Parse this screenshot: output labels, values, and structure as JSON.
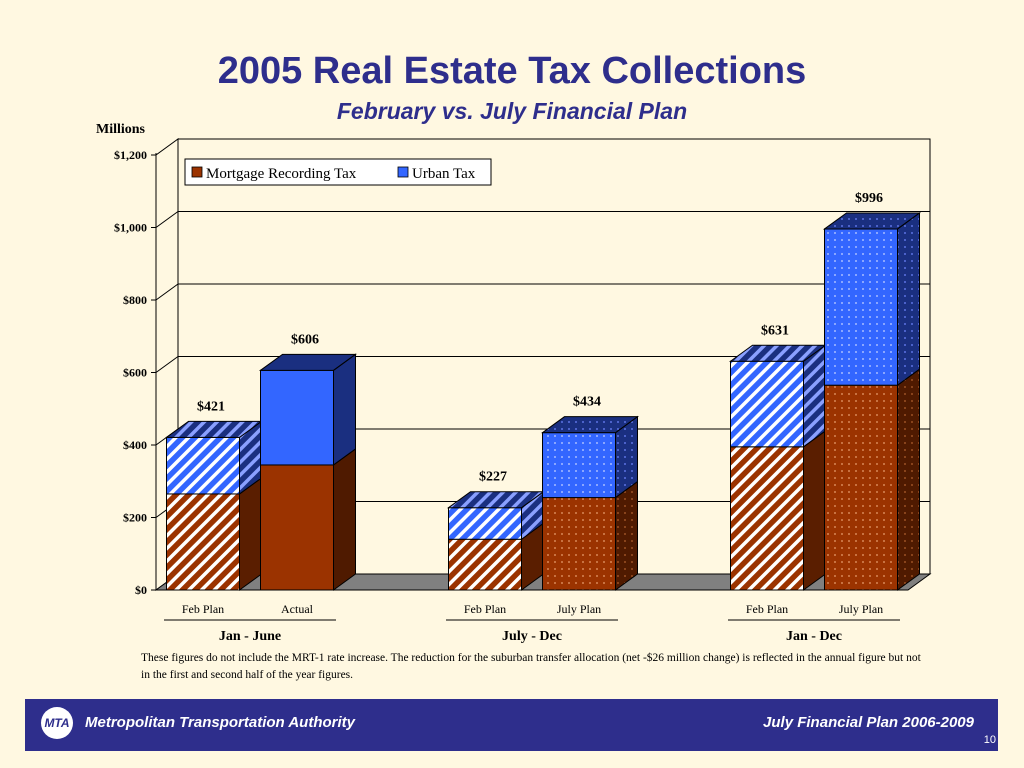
{
  "slide": {
    "title": "2005 Real Estate Tax Collections",
    "subtitle": "February vs. July Financial Plan",
    "units": "Millions",
    "note": "These figures do not include the MRT-1 rate increase.  The reduction for the suburban transfer allocation (net -$26 million change) is reflected in the annual figure but not in the first and second half of the year figures.",
    "footer_org": "Metropolitan Transportation Authority",
    "footer_plan": "July Financial Plan 2006-2009",
    "page_number": "10",
    "logo_text": "MTA"
  },
  "chart_data": {
    "type": "bar",
    "stacked": true,
    "title": "2005 Real Estate Tax Collections",
    "subtitle": "February vs. July Financial Plan",
    "ylabel": "Millions",
    "ylim": [
      0,
      1200
    ],
    "yticks": [
      "$0",
      "$200",
      "$400",
      "$600",
      "$800",
      "$1,000",
      "$1,200"
    ],
    "grid": true,
    "legend_position": "top-left",
    "categories": [
      "Feb Plan",
      "Actual",
      "Feb Plan",
      "July Plan",
      "Feb Plan",
      "July Plan"
    ],
    "groups": [
      {
        "label": "Jan - June",
        "members": [
          0,
          1
        ]
      },
      {
        "label": "July - Dec",
        "members": [
          2,
          3
        ]
      },
      {
        "label": "Jan - Dec",
        "members": [
          4,
          5
        ]
      }
    ],
    "series": [
      {
        "name": "Mortgage Recording Tax",
        "color": "#9b3300",
        "values": [
          265,
          345,
          140,
          255,
          395,
          565
        ]
      },
      {
        "name": "Urban Tax",
        "color": "#3366ff",
        "values": [
          156,
          261,
          87,
          179,
          236,
          431
        ]
      }
    ],
    "totals": [
      421,
      606,
      227,
      434,
      631,
      996
    ],
    "total_labels": [
      "$421",
      "$606",
      "$227",
      "$434",
      "$631",
      "$996"
    ],
    "fill_patterns": [
      "stripe",
      "solid",
      "stripe",
      "dots",
      "stripe",
      "dots"
    ]
  }
}
